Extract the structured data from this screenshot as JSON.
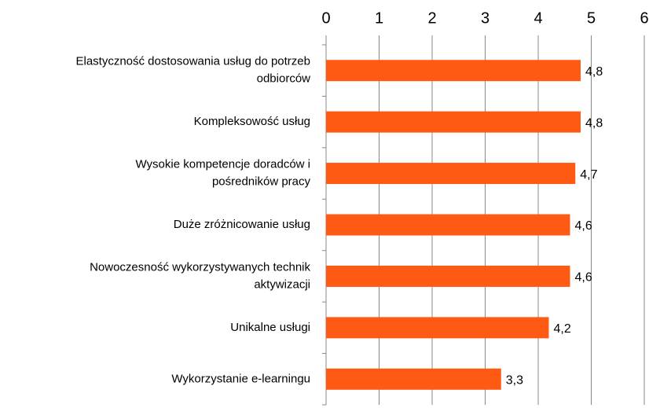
{
  "chart_data": {
    "type": "bar",
    "orientation": "horizontal",
    "categories": [
      "Elastyczność dostosowania usług do potrzeb\nodbiorców",
      "Kompleksowość usług",
      "Wysokie kompetencje doradców i\npośredników pracy",
      "Duże zróżnicowanie usług",
      "Nowoczesność wykorzystywanych technik\naktywizacji",
      "Unikalne usługi",
      "Wykorzystanie e-learningu"
    ],
    "values": [
      4.8,
      4.8,
      4.7,
      4.6,
      4.6,
      4.2,
      3.3
    ],
    "value_labels": [
      "4,8",
      "4,8",
      "4,7",
      "4,6",
      "4,6",
      "4,2",
      "3,3"
    ],
    "color": "#ff5a14",
    "xlim": [
      0,
      6
    ],
    "xticks": [
      0,
      1,
      2,
      3,
      4,
      5,
      6
    ],
    "grid": true
  }
}
